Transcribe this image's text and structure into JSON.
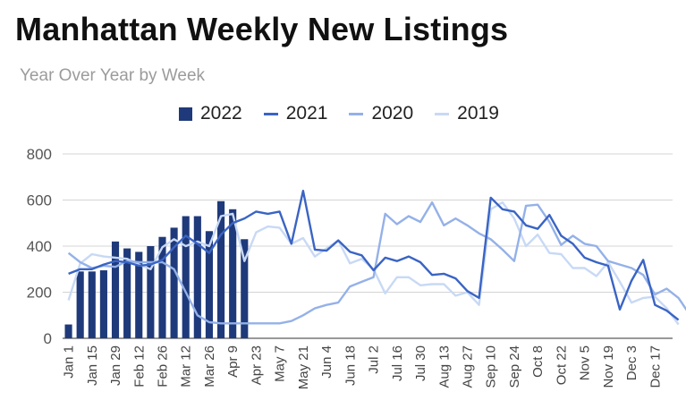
{
  "chart_data": {
    "type": "bar+line",
    "title": "Manhattan Weekly New Listings",
    "subtitle": "Year Over Year by Week",
    "xlabel": "",
    "ylabel": "",
    "ylim": [
      0,
      800
    ],
    "yticks": [
      0,
      200,
      400,
      600,
      800
    ],
    "grid": true,
    "legend_position": "top",
    "x_tick_labels": [
      "Jan 1",
      "Jan 15",
      "Jan 29",
      "Feb 12",
      "Feb 26",
      "Mar 12",
      "Mar 26",
      "Apr 9",
      "Apr 23",
      "May 7",
      "May 21",
      "Jun 4",
      "Jun 18",
      "Jul 2",
      "Jul 16",
      "Jul 30",
      "Aug 13",
      "Aug 27",
      "Sep 10",
      "Sep 24",
      "Oct 8",
      "Oct 22",
      "Nov 5",
      "Nov 19",
      "Dec 3",
      "Dec 17"
    ],
    "series": [
      {
        "name": "2022",
        "kind": "bar",
        "color": "#1f3a7a",
        "values": [
          60,
          290,
          290,
          295,
          420,
          390,
          375,
          400,
          440,
          480,
          530,
          530,
          465,
          595,
          560,
          430
        ]
      },
      {
        "name": "2021",
        "kind": "line",
        "color": "#3a64c4",
        "values": [
          280,
          300,
          300,
          320,
          335,
          330,
          315,
          320,
          340,
          395,
          445,
          410,
          370,
          450,
          500,
          520,
          550,
          540,
          550,
          410,
          640,
          385,
          380,
          425,
          375,
          360,
          295,
          350,
          335,
          355,
          330,
          275,
          280,
          260,
          205,
          175,
          610,
          560,
          550,
          490,
          475,
          535,
          445,
          410,
          350,
          330,
          315,
          125,
          250,
          340,
          145,
          120,
          80
        ]
      },
      {
        "name": "2020",
        "kind": "line",
        "color": "#94b1e8",
        "values": [
          370,
          330,
          305,
          315,
          310,
          335,
          330,
          330,
          330,
          300,
          200,
          100,
          70,
          65,
          65,
          65,
          65,
          65,
          65,
          75,
          100,
          130,
          145,
          155,
          225,
          245,
          265,
          540,
          495,
          530,
          505,
          590,
          490,
          520,
          490,
          455,
          430,
          385,
          335,
          575,
          580,
          505,
          405,
          445,
          410,
          400,
          335,
          320,
          305,
          275,
          190,
          215,
          175,
          100,
          75
        ]
      },
      {
        "name": "2019",
        "kind": "line",
        "color": "#c8d9f5",
        "values": [
          165,
          325,
          365,
          355,
          350,
          345,
          320,
          300,
          395,
          430,
          400,
          420,
          400,
          530,
          540,
          335,
          460,
          485,
          480,
          410,
          435,
          355,
          390,
          425,
          325,
          345,
          300,
          195,
          265,
          265,
          230,
          235,
          235,
          185,
          200,
          145,
          560,
          590,
          520,
          400,
          450,
          370,
          365,
          305,
          305,
          270,
          330,
          245,
          155,
          175,
          180,
          130,
          60
        ]
      }
    ]
  }
}
